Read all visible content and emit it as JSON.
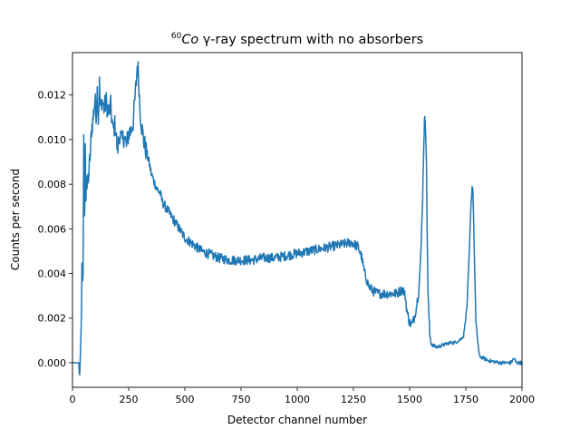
{
  "chart_data": {
    "type": "line",
    "title_sup": "60",
    "title_italic": "Co",
    "title_rest": " γ-ray spectrum with no absorbers",
    "xlabel": "Detector channel number",
    "ylabel": "Counts per second",
    "xlim": [
      0,
      2000
    ],
    "ylim": [
      -0.0011,
      0.0139
    ],
    "x_ticks": [
      0,
      250,
      500,
      750,
      1000,
      1250,
      1500,
      1750,
      2000
    ],
    "x_tick_labels": [
      "0",
      "250",
      "500",
      "750",
      "1000",
      "1250",
      "1500",
      "1750",
      "2000"
    ],
    "y_ticks": [
      0,
      0.002,
      0.004,
      0.006,
      0.008,
      0.01,
      0.012
    ],
    "y_tick_labels": [
      "0.000",
      "0.002",
      "0.004",
      "0.006",
      "0.008",
      "0.010",
      "0.012"
    ],
    "grid": false,
    "line_color": "#1f77b4",
    "series": [
      {
        "x": [
          0,
          28,
          30,
          34,
          38,
          42,
          45,
          47,
          50,
          52,
          55,
          57,
          60,
          62,
          65,
          70,
          75,
          80,
          85,
          90,
          95,
          100,
          105,
          110,
          115,
          120,
          125,
          130,
          140,
          150,
          160,
          170,
          180,
          190,
          200,
          210,
          220,
          230,
          240,
          250,
          260,
          270,
          278,
          284,
          288,
          292,
          296,
          300,
          310,
          320,
          330,
          340,
          350,
          360,
          375,
          390,
          400,
          425,
          450,
          475,
          500,
          525,
          550,
          575,
          600,
          650,
          700,
          750,
          800,
          850,
          900,
          950,
          1000,
          1050,
          1100,
          1150,
          1200,
          1240,
          1270,
          1285,
          1300,
          1320,
          1340,
          1360,
          1400,
          1440,
          1470,
          1480,
          1490,
          1500,
          1510,
          1520,
          1530,
          1540,
          1550,
          1558,
          1563,
          1566,
          1569,
          1572,
          1575,
          1578,
          1582,
          1590,
          1600,
          1620,
          1650,
          1680,
          1700,
          1720,
          1740,
          1755,
          1765,
          1772,
          1778,
          1781,
          1784,
          1788,
          1795,
          1810,
          1850,
          1900,
          1950,
          1965,
          1970,
          1975,
          2000
        ],
        "y": [
          0.0,
          0.0,
          -0.0002,
          -0.0003,
          0.001,
          0.0045,
          0.0038,
          0.0042,
          0.0098,
          0.0062,
          0.0072,
          0.0095,
          0.0076,
          0.0085,
          0.0078,
          0.0082,
          0.0088,
          0.0095,
          0.0105,
          0.0108,
          0.0113,
          0.0118,
          0.0112,
          0.0122,
          0.0109,
          0.0125,
          0.0112,
          0.0118,
          0.0114,
          0.0117,
          0.0112,
          0.0115,
          0.0104,
          0.0107,
          0.0095,
          0.0103,
          0.0099,
          0.0102,
          0.0097,
          0.0103,
          0.0104,
          0.0108,
          0.0118,
          0.0126,
          0.0133,
          0.0131,
          0.0124,
          0.0114,
          0.0104,
          0.0098,
          0.0094,
          0.009,
          0.0085,
          0.0082,
          0.0078,
          0.0076,
          0.0072,
          0.0068,
          0.0064,
          0.006,
          0.0056,
          0.0054,
          0.0052,
          0.005,
          0.0049,
          0.0047,
          0.0046,
          0.0046,
          0.0046,
          0.0047,
          0.0047,
          0.0048,
          0.0049,
          0.005,
          0.0051,
          0.0052,
          0.0053,
          0.0054,
          0.0052,
          0.0048,
          0.004,
          0.0034,
          0.0032,
          0.0031,
          0.0031,
          0.0031,
          0.0033,
          0.003,
          0.0022,
          0.0018,
          0.0017,
          0.002,
          0.0025,
          0.0032,
          0.0048,
          0.0075,
          0.0098,
          0.0108,
          0.0109,
          0.0103,
          0.0088,
          0.006,
          0.003,
          0.0012,
          0.0008,
          0.0007,
          0.0008,
          0.0009,
          0.0009,
          0.001,
          0.0012,
          0.0025,
          0.0048,
          0.0068,
          0.0079,
          0.0078,
          0.0068,
          0.0048,
          0.0018,
          0.0003,
          0.0001,
          0.0,
          0.0,
          0.0002,
          0.0001,
          0.0,
          0.0
        ]
      }
    ]
  }
}
